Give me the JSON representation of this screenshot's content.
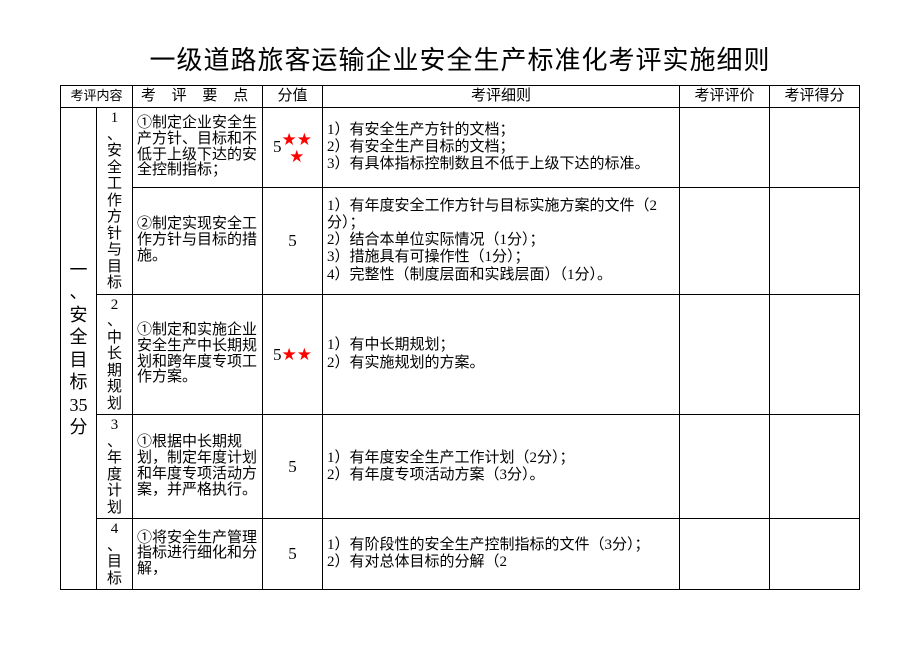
{
  "title": "一级道路旅客运输企业安全生产标准化考评实施细则",
  "headers": {
    "category": "考评内容",
    "point": "考 评 要 点",
    "score": "分值",
    "detail": "考评细则",
    "eval": "考评评价",
    "result": "考评得分"
  },
  "category": {
    "label_chars": [
      "一",
      "、",
      "安",
      "全",
      "目",
      "标",
      "35",
      "分"
    ]
  },
  "subs": {
    "s1": [
      "1",
      "、",
      "安",
      "全",
      "工",
      "作",
      "方",
      "针",
      "与",
      "目",
      "标"
    ],
    "s2": [
      "2",
      "、",
      "中",
      "长",
      "期",
      "规",
      "划"
    ],
    "s3": [
      "3",
      "、",
      "年",
      "度",
      "计",
      "划"
    ],
    "s4": [
      "4",
      "、",
      "目",
      "标"
    ]
  },
  "rows": {
    "r1": {
      "point": "①制定企业安全生产方针、目标和不低于上级下达的安全控制指标；",
      "score": "5",
      "stars": 3,
      "star_rows": 2,
      "detail": "1）有安全生产方针的文档；\n2）有安全生产目标的文档；\n3）有具体指标控制数且不低于上级下达的标准。"
    },
    "r2": {
      "point": "②制定实现安全工作方针与目标的措施。",
      "score": "5",
      "stars": 0,
      "detail": "1）有年度安全工作方针与目标实施方案的文件（2分）；\n2）结合本单位实际情况（1分）；\n3）措施具有可操作性（1分）；\n4）完整性（制度层面和实践层面）（1分）。"
    },
    "r3": {
      "point": "①制定和实施企业安全生产中长期规划和跨年度专项工作方案。",
      "score": "5",
      "stars": 2,
      "star_rows": 1,
      "detail": "1）有中长期规划；\n2）有实施规划的方案。"
    },
    "r4": {
      "point": "①根据中长期规划，制定年度计划和年度专项活动方案，并严格执行。",
      "score": "5",
      "stars": 0,
      "detail": "1）有年度安全生产工作计划（2分）；\n2）有年度专项活动方案（3分）。"
    },
    "r5": {
      "point": "①将安全生产管理指标进行细化和分解，",
      "score": "5",
      "stars": 0,
      "detail": "1）有阶段性的安全生产控制指标的文件（3分）；\n2）有对总体目标的分解（2"
    }
  },
  "style": {
    "star_color": "#ff0000",
    "background": "#ffffff",
    "text_color": "#000000",
    "border_color": "#000000",
    "title_fontsize": 26,
    "cell_fontsize": 15
  }
}
